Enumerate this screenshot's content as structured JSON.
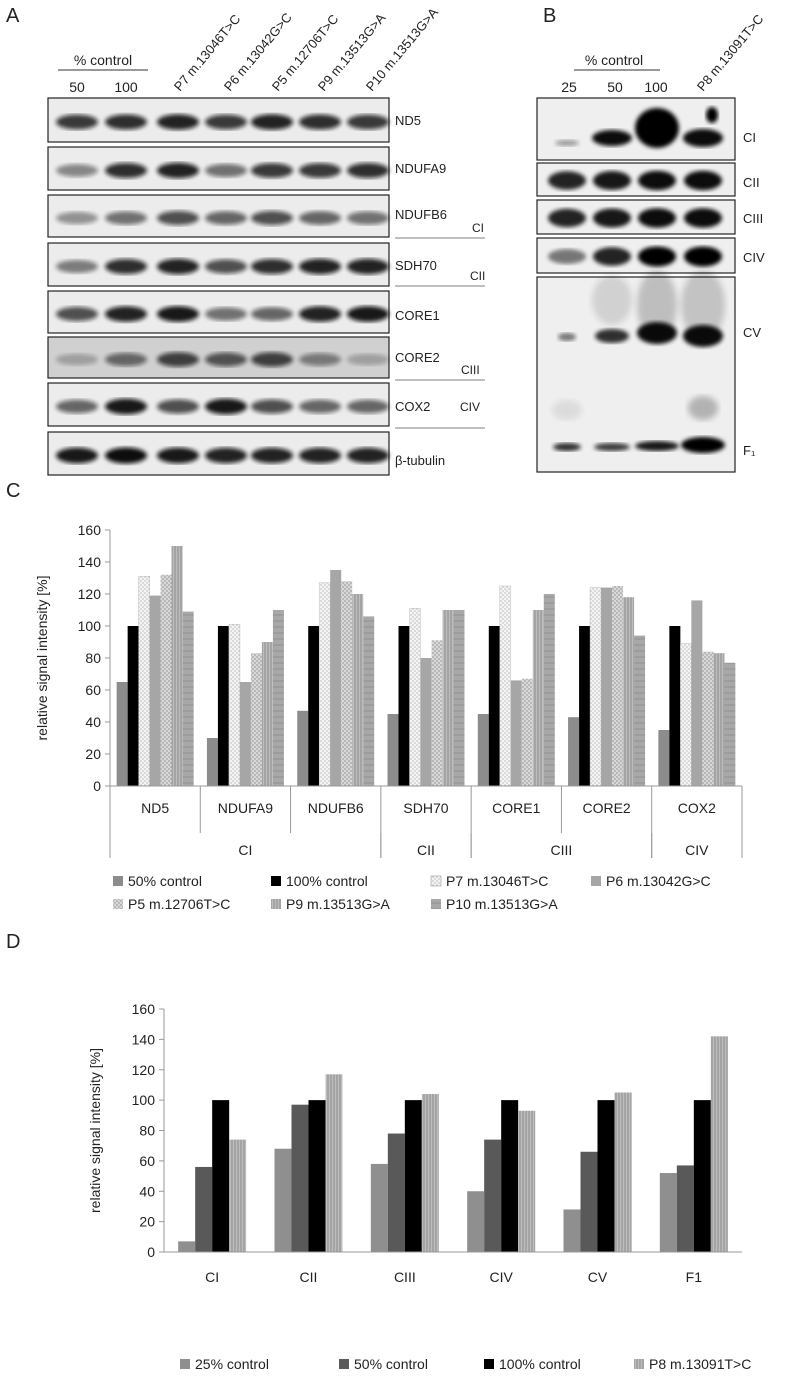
{
  "panels": {
    "A": {
      "letter": "A"
    },
    "B": {
      "letter": "B"
    },
    "C": {
      "letter": "C"
    },
    "D": {
      "letter": "D"
    }
  },
  "blotA": {
    "control_header": "% control",
    "lanes": [
      "50",
      "100",
      "P7 m.13046T>C",
      "P6 m.13042G>C",
      "P5 m.12706T>C",
      "P9 m.13513G>A",
      "P10 m.13513G>A"
    ],
    "bands": [
      "ND5",
      "NDUFA9",
      "NDUFB6",
      "SDH70",
      "CORE1",
      "CORE2",
      "COX2",
      "β-tubulin"
    ],
    "groups": [
      "CI",
      "CII",
      "CIII",
      "CIV"
    ]
  },
  "blotB": {
    "control_header": "% control",
    "lanes": [
      "25",
      "50",
      "100",
      "P8 m.13091T>C"
    ],
    "bands": [
      "CI",
      "CII",
      "CIII",
      "CIV",
      "CV",
      "F₁"
    ]
  },
  "chart_data": [
    {
      "type": "bar",
      "ylabel": "relative signal intensity [%]",
      "ylim": [
        0,
        160
      ],
      "yticks": [
        "0",
        "20",
        "40",
        "60",
        "80",
        "100",
        "120",
        "140",
        "160"
      ],
      "categories": [
        "ND5",
        "NDUFA9",
        "NDUFB6",
        "SDH70",
        "CORE1",
        "CORE2",
        "COX2"
      ],
      "groups": [
        {
          "label": "CI",
          "span": 3
        },
        {
          "label": "CII",
          "span": 1
        },
        {
          "label": "CIII",
          "span": 2
        },
        {
          "label": "CIV",
          "span": 1
        }
      ],
      "legend_position": "bottom",
      "series": [
        {
          "name": "50% control",
          "color": "#8c8c8c",
          "values": [
            65,
            30,
            47,
            45,
            45,
            43,
            35
          ]
        },
        {
          "name": "100% control",
          "color": "#000000",
          "values": [
            100,
            100,
            100,
            100,
            100,
            100,
            100
          ]
        },
        {
          "name": "P7 m.13046T>C",
          "color": "#f2f2f2",
          "values": [
            131,
            101,
            127,
            111,
            125,
            124,
            89
          ]
        },
        {
          "name": "P6 m.13042G>C",
          "color": "#a6a6a6",
          "values": [
            119,
            65,
            135,
            80,
            66,
            124,
            116
          ]
        },
        {
          "name": "P5 m.12706T>C",
          "color": "#d4d4d4",
          "values": [
            132,
            83,
            128,
            91,
            67,
            125,
            84
          ]
        },
        {
          "name": "P9 m.13513G>A",
          "color": "#9a9a9a",
          "values": [
            150,
            90,
            120,
            110,
            110,
            118,
            83
          ]
        },
        {
          "name": "P10 m.13513G>A",
          "color": "#b3b3b3",
          "values": [
            109,
            110,
            106,
            110,
            120,
            94,
            77
          ]
        }
      ]
    },
    {
      "type": "bar",
      "ylabel": "relative signal intensity [%]",
      "ylim": [
        0,
        160
      ],
      "yticks": [
        "0",
        "20",
        "40",
        "60",
        "80",
        "100",
        "120",
        "140",
        "160"
      ],
      "categories": [
        "CI",
        "CII",
        "CIII",
        "CIV",
        "CV",
        "F1"
      ],
      "legend_position": "bottom",
      "series": [
        {
          "name": "25% control",
          "color": "#8f8f8f",
          "values": [
            7,
            68,
            58,
            40,
            28,
            52
          ]
        },
        {
          "name": "50% control",
          "color": "#595959",
          "values": [
            56,
            97,
            78,
            74,
            66,
            57
          ]
        },
        {
          "name": "100% control",
          "color": "#000000",
          "values": [
            100,
            100,
            100,
            100,
            100,
            100
          ]
        },
        {
          "name": "P8 m.13091T>C",
          "color": "#b5b5b5",
          "values": [
            74,
            117,
            104,
            93,
            105,
            142
          ]
        }
      ]
    }
  ]
}
